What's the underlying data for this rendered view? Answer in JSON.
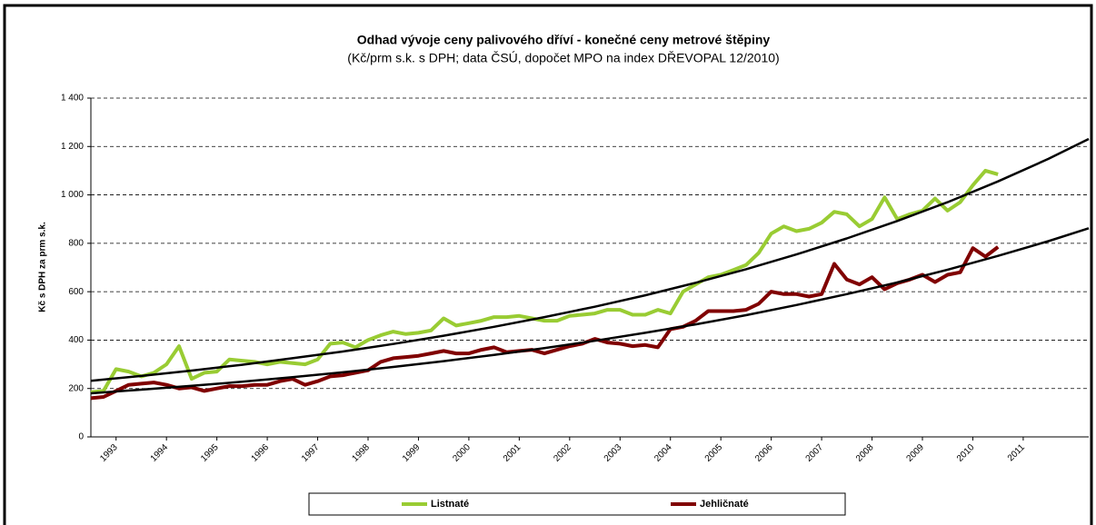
{
  "chart_data": {
    "type": "line",
    "title": "Odhad vývoje ceny palivového dříví - konečné ceny metrové štěpiny",
    "subtitle": "(Kč/prm s.k. s DPH; data ČSÚ, dopočet MPO na index DŘEVOPAL 12/2010)",
    "y_label": "Kč s DPH za prm s.k.",
    "xlim": [
      1993,
      2012.8
    ],
    "xticks": [
      {
        "value": 1993.5,
        "label": "1993"
      },
      {
        "value": 1994.5,
        "label": "1994"
      },
      {
        "value": 1995.5,
        "label": "1995"
      },
      {
        "value": 1996.5,
        "label": "1996"
      },
      {
        "value": 1997.5,
        "label": "1997"
      },
      {
        "value": 1998.5,
        "label": "1998"
      },
      {
        "value": 1999.5,
        "label": "1999"
      },
      {
        "value": 2000.5,
        "label": "2000"
      },
      {
        "value": 2001.5,
        "label": "2001"
      },
      {
        "value": 2002.5,
        "label": "2002"
      },
      {
        "value": 2003.5,
        "label": "2003"
      },
      {
        "value": 2004.5,
        "label": "2004"
      },
      {
        "value": 2005.5,
        "label": "2005"
      },
      {
        "value": 2006.5,
        "label": "2006"
      },
      {
        "value": 2007.5,
        "label": "2007"
      },
      {
        "value": 2008.5,
        "label": "2008"
      },
      {
        "value": 2009.5,
        "label": "2009"
      },
      {
        "value": 2010.5,
        "label": "2010"
      },
      {
        "value": 2011.5,
        "label": "2011"
      }
    ],
    "ylim": [
      0,
      1400
    ],
    "yticks": [
      0,
      200,
      400,
      600,
      800,
      {
        "value": 1000,
        "label": "1 000"
      },
      {
        "value": 1200,
        "label": "1 200"
      },
      {
        "value": 1400,
        "label": "1 400"
      }
    ],
    "grid": true,
    "x": [
      1993,
      1993.25,
      1993.5,
      1993.75,
      1994,
      1994.25,
      1994.5,
      1994.75,
      1995,
      1995.25,
      1995.5,
      1995.75,
      1996,
      1996.25,
      1996.5,
      1996.75,
      1997,
      1997.25,
      1997.5,
      1997.75,
      1998,
      1998.25,
      1998.5,
      1998.75,
      1999,
      1999.25,
      1999.5,
      1999.75,
      2000,
      2000.25,
      2000.5,
      2000.75,
      2001,
      2001.25,
      2001.5,
      2001.75,
      2002,
      2002.25,
      2002.5,
      2002.75,
      2003,
      2003.25,
      2003.5,
      2003.75,
      2004,
      2004.25,
      2004.5,
      2004.75,
      2005,
      2005.25,
      2005.5,
      2005.75,
      2006,
      2006.25,
      2006.5,
      2006.75,
      2007,
      2007.25,
      2007.5,
      2007.75,
      2008,
      2008.25,
      2008.5,
      2008.75,
      2009,
      2009.25,
      2009.5,
      2009.75,
      2010,
      2010.25,
      2010.5,
      2010.75,
      2011
    ],
    "series": [
      {
        "name": "Listnaté",
        "color": "#99cc33",
        "values": [
          185,
          190,
          280,
          270,
          250,
          265,
          300,
          375,
          240,
          265,
          270,
          320,
          315,
          310,
          300,
          310,
          305,
          300,
          320,
          385,
          390,
          370,
          400,
          420,
          435,
          425,
          430,
          440,
          490,
          460,
          470,
          480,
          495,
          495,
          500,
          490,
          480,
          480,
          500,
          505,
          510,
          525,
          525,
          505,
          505,
          525,
          510,
          600,
          630,
          660,
          670,
          690,
          710,
          760,
          840,
          870,
          850,
          860,
          885,
          930,
          920,
          870,
          900,
          990,
          900,
          920,
          935,
          985,
          935,
          970,
          1040,
          1100,
          1085
        ]
      },
      {
        "name": "Jehličnaté",
        "color": "#800000",
        "values": [
          160,
          165,
          190,
          215,
          220,
          225,
          215,
          200,
          205,
          190,
          200,
          210,
          210,
          215,
          215,
          230,
          240,
          215,
          230,
          250,
          255,
          265,
          275,
          310,
          325,
          330,
          335,
          345,
          355,
          345,
          345,
          360,
          370,
          350,
          355,
          360,
          345,
          360,
          375,
          385,
          405,
          390,
          385,
          375,
          380,
          370,
          445,
          455,
          480,
          520,
          520,
          520,
          525,
          550,
          600,
          590,
          590,
          580,
          590,
          715,
          650,
          630,
          660,
          610,
          635,
          650,
          670,
          640,
          670,
          680,
          780,
          745,
          785
        ]
      }
    ],
    "trendlines": [
      {
        "color": "#000000",
        "x": [
          1993,
          1994,
          1995,
          1996,
          1997,
          1998,
          1999,
          2000,
          2001,
          2002,
          2003,
          2004,
          2005,
          2006,
          2007,
          2008,
          2009,
          2010,
          2011,
          2012,
          2012.8
        ],
        "values": [
          232,
          252,
          274,
          298,
          325,
          353,
          384,
          418,
          455,
          495,
          538,
          585,
          637,
          693,
          754,
          820,
          892,
          970,
          1056,
          1149,
          1231
        ]
      },
      {
        "color": "#000000",
        "x": [
          1993,
          1994,
          1995,
          1996,
          1997,
          1998,
          1999,
          2000,
          2001,
          2002,
          2003,
          2004,
          2005,
          2006,
          2007,
          2008,
          2009,
          2010,
          2011,
          2012,
          2012.8
        ],
        "values": [
          180,
          195,
          211,
          228,
          247,
          267,
          289,
          313,
          339,
          367,
          397,
          430,
          465,
          503,
          545,
          590,
          638,
          691,
          748,
          809,
          862
        ]
      }
    ]
  }
}
